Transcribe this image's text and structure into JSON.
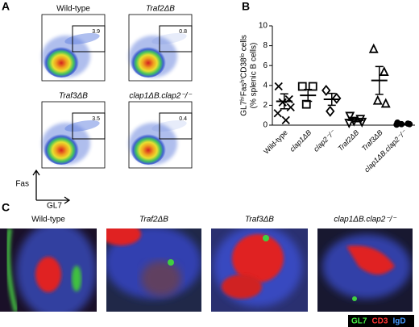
{
  "panels": {
    "a": {
      "letter": "A",
      "y_axis": "Fas",
      "x_axis": "GL7",
      "plots": [
        {
          "label": "Wild-type",
          "gate": 3.9
        },
        {
          "label": "Traf2ΔB",
          "gate": 0.8
        },
        {
          "label": "Traf3ΔB",
          "gate": 3.5
        },
        {
          "label": "clap1ΔB.clap2⁻/⁻",
          "gate": 0.4
        }
      ]
    },
    "b": {
      "letter": "B"
    },
    "c": {
      "letter": "C",
      "images": [
        "Wild-type",
        "Traf2ΔB",
        "Traf3ΔB",
        "clap1ΔB.clap2⁻/⁻"
      ],
      "legend": [
        {
          "name": "GL7",
          "color": "#44ee44"
        },
        {
          "name": "CD3",
          "color": "#ff3333"
        },
        {
          "name": "IgD",
          "color": "#4499ff"
        }
      ]
    }
  },
  "chart_data": {
    "type": "dot",
    "ylabel": [
      "GL7ʰⁱFasʰⁱCD38ˡᵒ cells",
      "(% splenic B cells)"
    ],
    "categories": [
      "Wild-type",
      "clap1ΔB",
      "clap2⁻/⁻",
      "Traf2ΔB",
      "Traf3ΔB",
      "clap1ΔB.clap2⁻/⁻"
    ],
    "groups": [
      {
        "marker": "x",
        "values": [
          3.9,
          2.6,
          2.3,
          1.8,
          1.2,
          0.5
        ],
        "mean": 2.4,
        "sem": 0.75
      },
      {
        "marker": "square",
        "values": [
          3.9,
          3.9,
          2.1
        ],
        "mean": 3.0,
        "sem": 0.6
      },
      {
        "marker": "diamond",
        "values": [
          3.5,
          2.7,
          1.4
        ],
        "mean": 2.6,
        "sem": 0.6
      },
      {
        "marker": "triangle-down",
        "values": [
          0.9,
          0.6,
          0.4,
          0.3,
          0.2
        ],
        "mean": 0.5,
        "sem": 0.15
      },
      {
        "marker": "triangle-up",
        "values": [
          7.7,
          5.4,
          2.5,
          2.2
        ],
        "mean": 4.5,
        "sem": 1.4
      },
      {
        "marker": "circle",
        "values": [
          0.25,
          0.15,
          0.1,
          0.1,
          0.05
        ],
        "mean": 0.1,
        "sem": 0.04
      }
    ],
    "color": "#000000",
    "ylim": [
      0,
      10
    ],
    "yticks": [
      0,
      2,
      4,
      6,
      8,
      10
    ]
  }
}
